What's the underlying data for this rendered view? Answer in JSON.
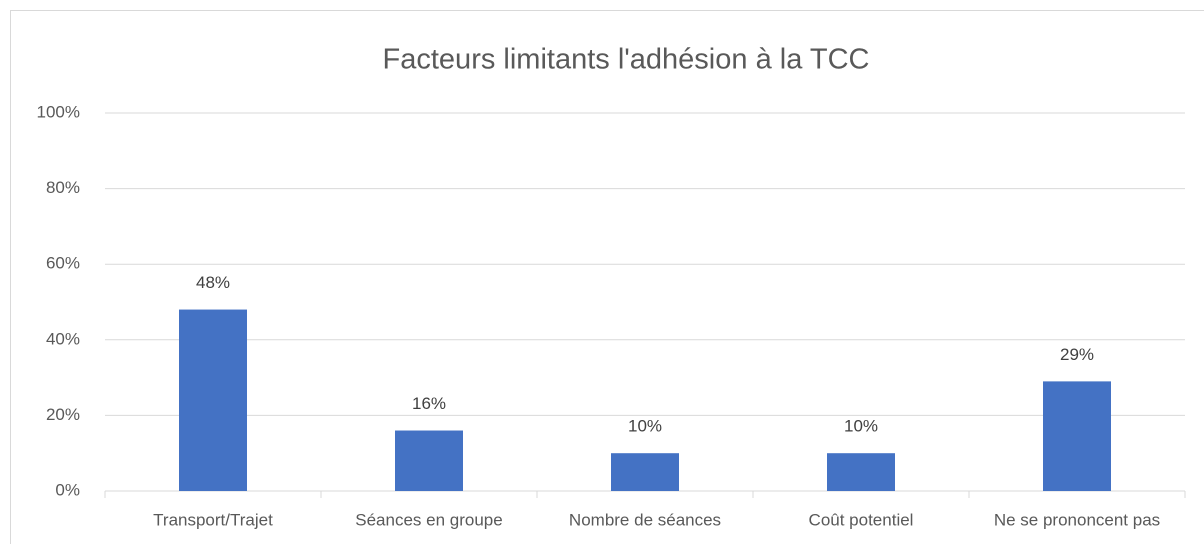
{
  "chart_data": {
    "type": "bar",
    "title": "Facteurs limitants l'adhésion à la TCC",
    "categories": [
      "Transport/Trajet",
      "Séances en groupe",
      "Nombre de séances",
      "Coût potentiel",
      "Ne se prononcent pas"
    ],
    "values": [
      48,
      16,
      10,
      10,
      29
    ],
    "value_labels": [
      "48%",
      "16%",
      "10%",
      "10%",
      "29%"
    ],
    "color": "#4472c4",
    "ylim": [
      0,
      100
    ],
    "yticks": [
      {
        "value": 0,
        "label": "0%"
      },
      {
        "value": 20,
        "label": "20%"
      },
      {
        "value": 40,
        "label": "40%"
      },
      {
        "value": 60,
        "label": "60%"
      },
      {
        "value": 80,
        "label": "80%"
      },
      {
        "value": 100,
        "label": "100%"
      }
    ],
    "grid": true
  }
}
